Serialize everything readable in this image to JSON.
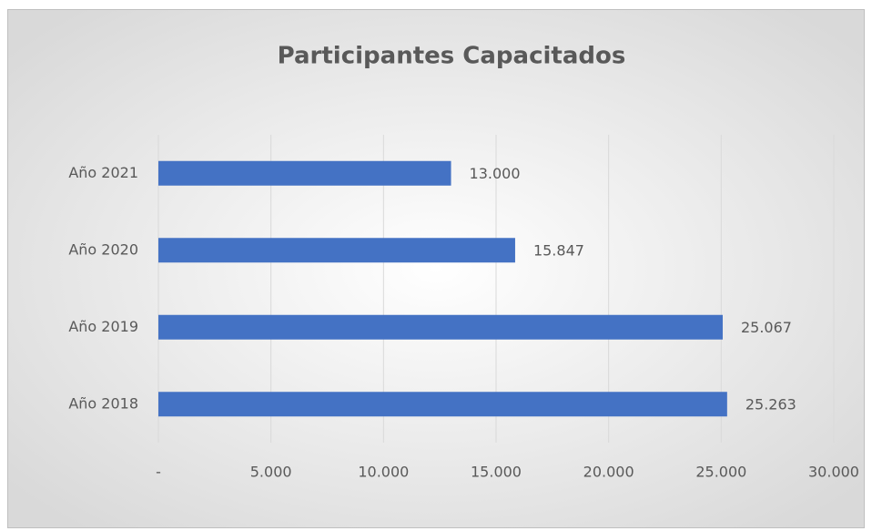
{
  "chart_data": {
    "type": "bar",
    "orientation": "horizontal",
    "title": "Participantes Capacitados",
    "categories": [
      "Año 2021",
      "Año 2020",
      "Año 2019",
      "Año 2018"
    ],
    "values": [
      13000,
      15847,
      25067,
      25263
    ],
    "value_labels": [
      "13.000",
      "15.847",
      "25.067",
      "25.263"
    ],
    "color": "#4472c4",
    "xlim": [
      0,
      30000
    ],
    "xticks": [
      {
        "value": 0,
        "label": "-"
      },
      {
        "value": 5000,
        "label": "5.000"
      },
      {
        "value": 10000,
        "label": "10.000"
      },
      {
        "value": 15000,
        "label": "15.000"
      },
      {
        "value": 20000,
        "label": "20.000"
      },
      {
        "value": 25000,
        "label": "25.000"
      },
      {
        "value": 30000,
        "label": "30.000"
      }
    ],
    "grid": true
  }
}
